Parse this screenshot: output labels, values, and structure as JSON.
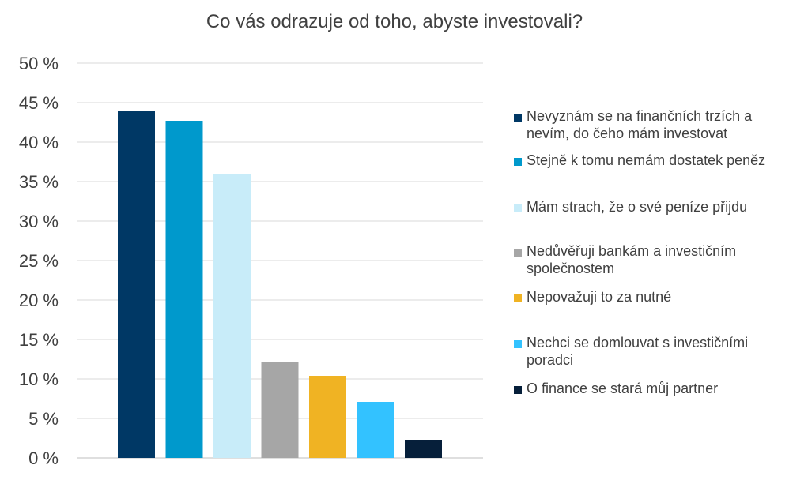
{
  "chart_data": {
    "type": "bar",
    "title": "Co vás odrazuje od toho, abyste investovali?",
    "xlabel": "",
    "ylabel": "",
    "ylim": [
      0,
      50
    ],
    "y_ticks": [
      "0 %",
      "5 %",
      "10 %",
      "15 %",
      "20 %",
      "25 %",
      "30 %",
      "35 %",
      "40 %",
      "45 %",
      "50 %"
    ],
    "grid": true,
    "legend_position": "right",
    "series": [
      {
        "name": "Nevyznám se na finančních trzích a nevím, do čeho mám investovat",
        "value": 44.0,
        "color": "#003865"
      },
      {
        "name": "Stejně k tomu nemám dostatek peněz",
        "value": 42.7,
        "color": "#0099CC"
      },
      {
        "name": "Mám strach, že o své peníze přijdu",
        "value": 36.0,
        "color": "#C8ECF9"
      },
      {
        "name": "Nedůvěřuji bankám a investičním společnostem",
        "value": 12.1,
        "color": "#A6A6A6"
      },
      {
        "name": "Nepovažuji to za nutné",
        "value": 10.4,
        "color": "#F0B323"
      },
      {
        "name": "Nechci se domlouvat s investičními poradci",
        "value": 7.1,
        "color": "#33C2FF"
      },
      {
        "name": "O finance se stará můj partner",
        "value": 2.3,
        "color": "#061F3A"
      }
    ]
  }
}
